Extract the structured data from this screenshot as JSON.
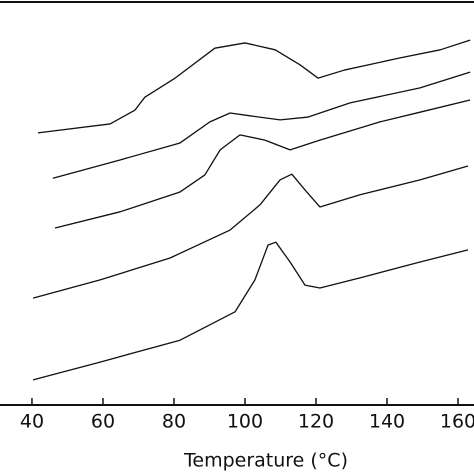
{
  "chart_data": {
    "type": "line",
    "x_label": "Temperature (°C)",
    "xlim": [
      31,
      164.5
    ],
    "xticks": [
      40,
      60,
      80,
      100,
      120,
      140,
      160
    ],
    "ylim": [
      0,
      100
    ],
    "series": [
      {
        "color": "#111111",
        "x": [
          41.7,
          62,
          69,
          71.8,
          80.3,
          91.5,
          100,
          108.5,
          115.5,
          120.6,
          128,
          143.7,
          155,
          163.4
        ],
        "values": [
          67.2,
          69.4,
          72.8,
          76.0,
          80.7,
          88.1,
          89.4,
          87.7,
          84.0,
          80.7,
          82.7,
          85.7,
          87.7,
          90.1
        ]
      },
      {
        "color": "#111111",
        "x": [
          45.9,
          64.8,
          81.7,
          90.1,
          95.8,
          101.4,
          109.9,
          117.8,
          129.6,
          149.3,
          163.4
        ],
        "values": [
          56.0,
          60.5,
          64.7,
          69.9,
          72.1,
          71.4,
          70.4,
          71.1,
          74.6,
          78.3,
          82.2
        ]
      },
      {
        "color": "#111111",
        "x": [
          46.5,
          64.8,
          81.7,
          88.7,
          93,
          98.6,
          105.6,
          112.7,
          121.1,
          138,
          149.3,
          163.4
        ],
        "values": [
          43.7,
          47.7,
          52.6,
          56.8,
          63.0,
          66.7,
          65.4,
          63.0,
          65.4,
          69.9,
          72.3,
          75.3
        ]
      },
      {
        "color": "#111111",
        "x": [
          40.3,
          59.2,
          78.9,
          95.8,
          104.2,
          109.9,
          113.2,
          116.9,
          121.1,
          132.4,
          149.3,
          162.8
        ],
        "values": [
          26.4,
          30.9,
          36.3,
          43.2,
          49.4,
          55.6,
          57.0,
          53.1,
          48.9,
          51.9,
          55.6,
          59.0
        ]
      },
      {
        "color": "#111111",
        "x": [
          40.3,
          59.2,
          81.7,
          97.2,
          102.8,
          106.5,
          108.7,
          112.7,
          116.9,
          121.1,
          132.4,
          149.3,
          162.8
        ],
        "values": [
          6.2,
          10.6,
          16.0,
          23.0,
          30.9,
          39.5,
          40.2,
          35.3,
          29.6,
          28.9,
          31.4,
          35.3,
          38.3
        ]
      }
    ]
  }
}
